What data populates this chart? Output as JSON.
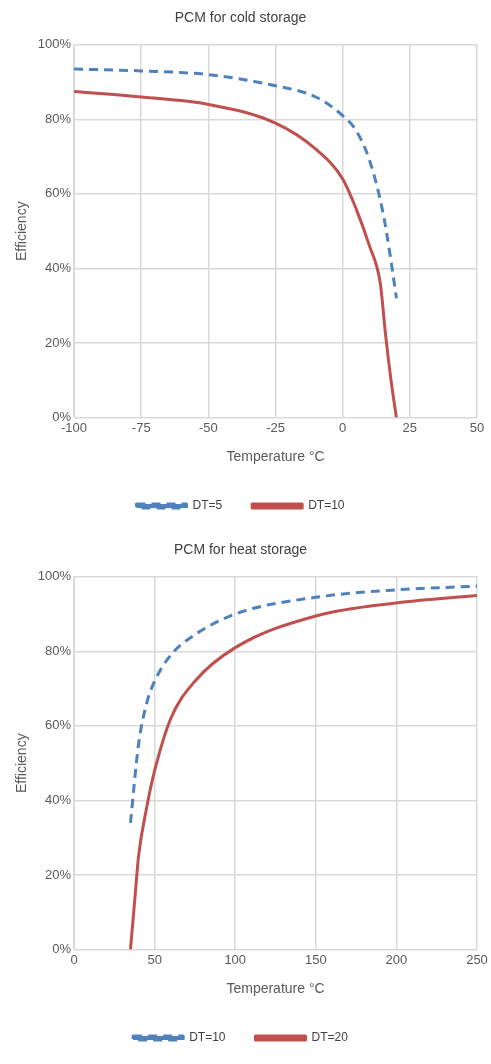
{
  "chart_data": [
    {
      "type": "line",
      "title": "PCM for cold storage",
      "xlabel": "Temperature °C",
      "ylabel": "Efficiency",
      "xlim": [
        -100,
        50
      ],
      "xticks": [
        -100,
        -75,
        -50,
        -25,
        0,
        25,
        50
      ],
      "ylim": [
        0,
        100
      ],
      "yticks": [
        {
          "value": 0,
          "label": "0%"
        },
        {
          "value": 20,
          "label": "20%"
        },
        {
          "value": 40,
          "label": "40%"
        },
        {
          "value": 60,
          "label": "60%"
        },
        {
          "value": 80,
          "label": "80%"
        },
        {
          "value": 100,
          "label": "100%"
        }
      ],
      "grid": true,
      "legend": "bottom",
      "series": [
        {
          "name": "DT=5",
          "color": "#4f81bd",
          "line_style": "dashed",
          "x": [
            -100,
            -75,
            -50,
            -25,
            -10,
            0,
            5,
            10,
            15,
            18,
            20
          ],
          "values": [
            93.5,
            93,
            92,
            89,
            86,
            81,
            77,
            69,
            55,
            42,
            32
          ]
        },
        {
          "name": "DT=10",
          "color": "#c0504d",
          "line_style": "solid",
          "x": [
            -100,
            -75,
            -50,
            -25,
            -10,
            0,
            5,
            10,
            14,
            16,
            18,
            20
          ],
          "values": [
            87.5,
            86,
            84,
            79,
            72,
            64,
            56,
            46,
            36,
            22,
            10,
            0
          ]
        }
      ]
    },
    {
      "type": "line",
      "title": "PCM for heat storage",
      "xlabel": "Temperature °C",
      "ylabel": "Efficiency",
      "xlim": [
        0,
        250
      ],
      "xticks": [
        0,
        50,
        100,
        150,
        200,
        250
      ],
      "ylim": [
        0,
        100
      ],
      "yticks": [
        {
          "value": 0,
          "label": "0%"
        },
        {
          "value": 20,
          "label": "20%"
        },
        {
          "value": 40,
          "label": "40%"
        },
        {
          "value": 60,
          "label": "60%"
        },
        {
          "value": 80,
          "label": "80%"
        },
        {
          "value": 100,
          "label": "100%"
        }
      ],
      "grid": true,
      "legend": "bottom",
      "series": [
        {
          "name": "DT=10",
          "color": "#4f81bd",
          "line_style": "dashed",
          "x": [
            35,
            40,
            45,
            50,
            60,
            70,
            100,
            150,
            200,
            250
          ],
          "values": [
            34,
            55,
            66,
            72,
            79,
            83,
            90,
            94.5,
            96.5,
            97.5
          ]
        },
        {
          "name": "DT=20",
          "color": "#c0504d",
          "line_style": "solid",
          "x": [
            35,
            38,
            40,
            45,
            50,
            60,
            75,
            100,
            150,
            200,
            250
          ],
          "values": [
            0,
            15,
            25,
            38,
            48,
            62,
            72,
            81,
            89.5,
            93,
            95
          ]
        }
      ]
    }
  ]
}
